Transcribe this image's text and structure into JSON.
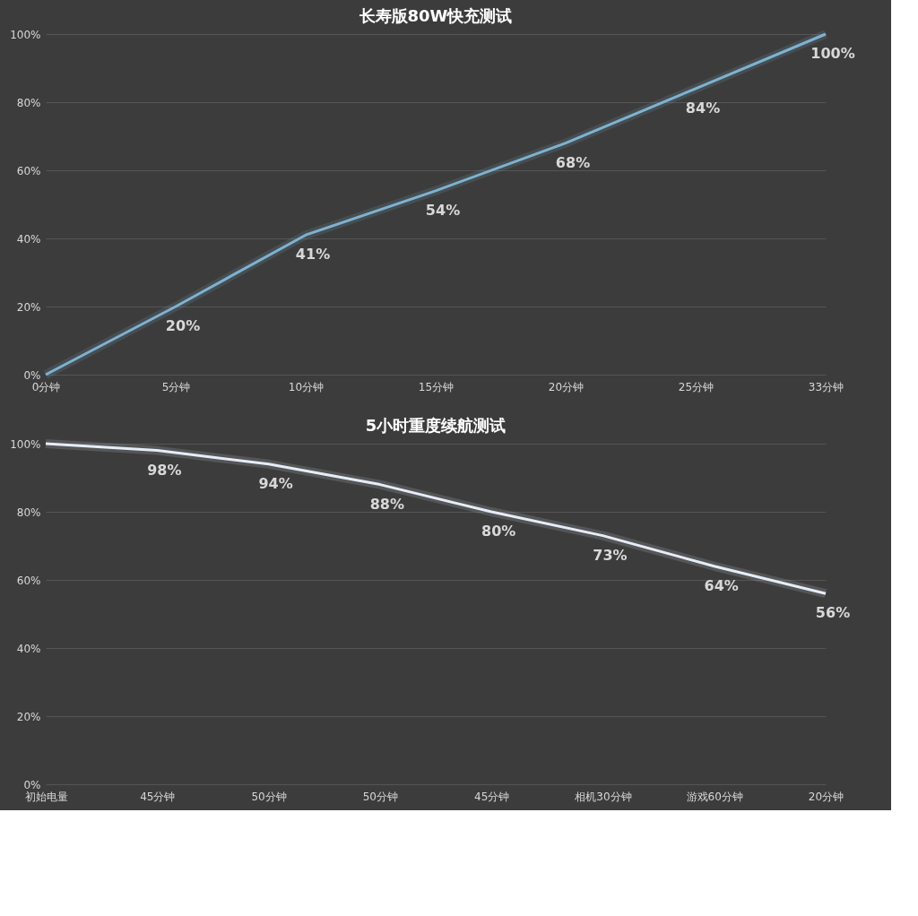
{
  "chart_data": [
    {
      "type": "line",
      "title": "长寿版80W快充测试",
      "categories": [
        "0分钟",
        "5分钟",
        "10分钟",
        "15分钟",
        "20分钟",
        "25分钟",
        "33分钟"
      ],
      "series": [
        {
          "color": "#7fb2d0",
          "values": [
            0,
            20,
            41,
            54,
            68,
            84,
            100
          ],
          "value_labels": [
            null,
            "20%",
            "41%",
            "54%",
            "68%",
            "84%",
            "100%"
          ]
        }
      ],
      "ylim": [
        0,
        100
      ],
      "yticks": [
        {
          "value": 0,
          "label": "0%"
        },
        {
          "value": 20,
          "label": "20%"
        },
        {
          "value": 40,
          "label": "40%"
        },
        {
          "value": 60,
          "label": "60%"
        },
        {
          "value": 80,
          "label": "80%"
        },
        {
          "value": 100,
          "label": "100%"
        }
      ],
      "grid": "y",
      "marker": "none",
      "line_style": "solid"
    },
    {
      "type": "line",
      "title": "5小时重度续航测试",
      "categories": [
        "初始电量",
        "45分钟",
        "50分钟",
        "50分钟",
        "45分钟",
        "相机30分钟",
        "游戏60分钟",
        "20分钟"
      ],
      "series": [
        {
          "color": "#e6eef6",
          "values": [
            100,
            98,
            94,
            88,
            80,
            73,
            64,
            56
          ],
          "value_labels": [
            null,
            "98%",
            "94%",
            "88%",
            "80%",
            "73%",
            "64%",
            "56%"
          ]
        }
      ],
      "ylim": [
        0,
        100
      ],
      "yticks": [
        {
          "value": 0,
          "label": "0%"
        },
        {
          "value": 20,
          "label": "20%"
        },
        {
          "value": 40,
          "label": "40%"
        },
        {
          "value": 60,
          "label": "60%"
        },
        {
          "value": 80,
          "label": "80%"
        },
        {
          "value": 100,
          "label": "100%"
        }
      ],
      "grid": "y",
      "marker": "none",
      "line_style": "solid"
    }
  ]
}
